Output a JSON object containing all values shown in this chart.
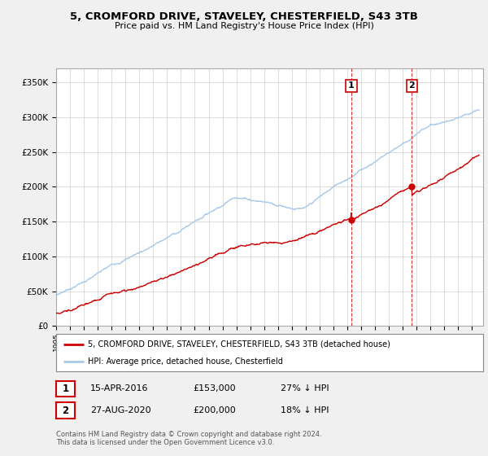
{
  "title": "5, CROMFORD DRIVE, STAVELEY, CHESTERFIELD, S43 3TB",
  "subtitle": "Price paid vs. HM Land Registry's House Price Index (HPI)",
  "ylim": [
    0,
    370000
  ],
  "xlim_start": 1995.0,
  "xlim_end": 2025.8,
  "hpi_color": "#a8c8e8",
  "price_color": "#cc0000",
  "sale1_x": 2016.29,
  "sale1_y": 153000,
  "sale2_x": 2020.66,
  "sale2_y": 200000,
  "legend_line1": "5, CROMFORD DRIVE, STAVELEY, CHESTERFIELD, S43 3TB (detached house)",
  "legend_line2": "HPI: Average price, detached house, Chesterfield",
  "footnote": "Contains HM Land Registry data © Crown copyright and database right 2024.\nThis data is licensed under the Open Government Licence v3.0.",
  "bg_color": "#f0f0f0",
  "plot_bg_color": "#ffffff"
}
